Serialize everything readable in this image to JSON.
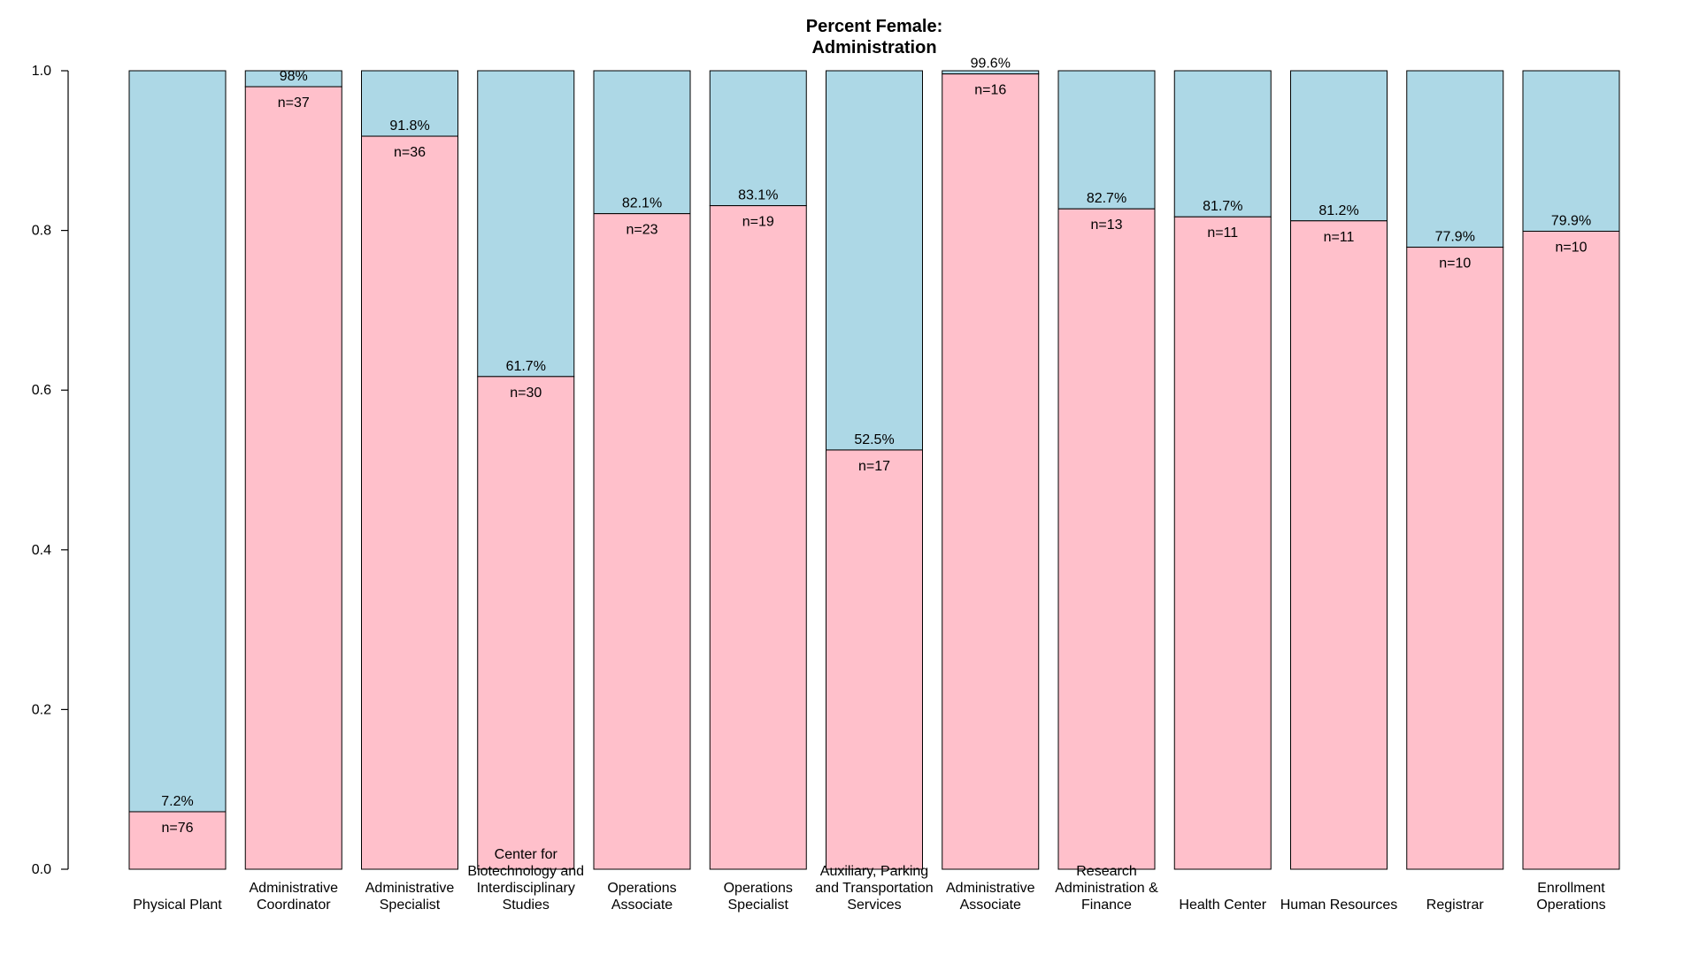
{
  "chart_data": {
    "type": "bar",
    "stacked": true,
    "title": [
      "Percent Female:",
      "Administration"
    ],
    "ylim": [
      0,
      1
    ],
    "yticks": [
      "0.0",
      "0.2",
      "0.4",
      "0.6",
      "0.8",
      "1.0"
    ],
    "ytick_values": [
      0,
      0.2,
      0.4,
      0.6,
      0.8,
      1.0
    ],
    "colors": {
      "female": "#ffc0cb",
      "male": "#add8e6",
      "border": "#000000"
    },
    "categories": [
      [
        "Physical Plant"
      ],
      [
        "Administrative",
        "Coordinator"
      ],
      [
        "Administrative",
        "Specialist"
      ],
      [
        "Center for",
        "Biotechnology and",
        "Interdisciplinary",
        "Studies"
      ],
      [
        "Operations",
        "Associate"
      ],
      [
        "Operations",
        "Specialist"
      ],
      [
        "Auxiliary, Parking",
        "and Transportation",
        "Services"
      ],
      [
        "Administrative",
        "Associate"
      ],
      [
        "Research",
        "Administration &",
        "Finance"
      ],
      [
        "Health Center"
      ],
      [
        "Human Resources"
      ],
      [
        "Registrar"
      ],
      [
        "Enrollment",
        "Operations"
      ]
    ],
    "values": [
      0.072,
      0.98,
      0.918,
      0.617,
      0.821,
      0.831,
      0.525,
      0.996,
      0.827,
      0.817,
      0.812,
      0.779,
      0.799
    ],
    "pct_labels": [
      "7.2%",
      "98%",
      "91.8%",
      "61.7%",
      "82.1%",
      "83.1%",
      "52.5%",
      "99.6%",
      "82.7%",
      "81.7%",
      "81.2%",
      "77.9%",
      "79.9%"
    ],
    "n_labels": [
      "n=76",
      "n=37",
      "n=36",
      "n=30",
      "n=23",
      "n=19",
      "n=17",
      "n=16",
      "n=13",
      "n=11",
      "n=11",
      "n=10",
      "n=10"
    ]
  }
}
